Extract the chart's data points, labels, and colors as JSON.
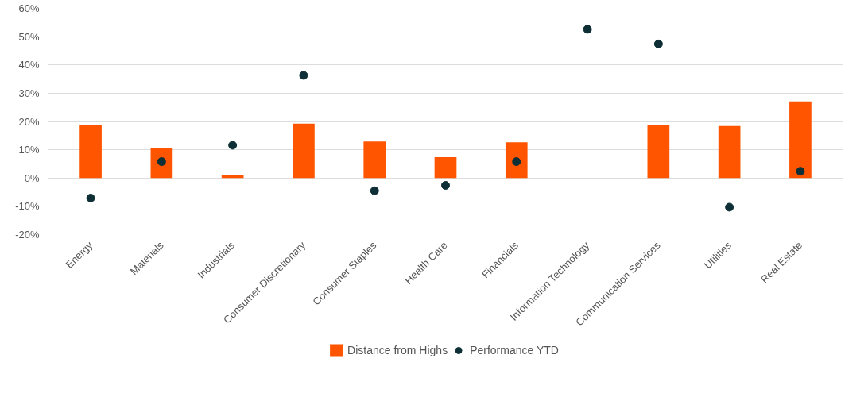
{
  "chart_data": {
    "type": "bar",
    "categories": [
      "Energy",
      "Materials",
      "Industrials",
      "Consumer Discretionary",
      "Consumer Staples",
      "Health Care",
      "Financials",
      "Information Technology",
      "Communication Services",
      "Utilities",
      "Real Estate"
    ],
    "series": [
      {
        "name": "Distance from Highs",
        "color": "#ff5500",
        "values": [
          18.7,
          10.5,
          1.0,
          19.2,
          12.9,
          7.4,
          12.6,
          null,
          18.7,
          18.4,
          27.1
        ]
      },
      {
        "name": "Performance YTD",
        "type": "scatter",
        "color": "#0d2f35",
        "marker": "circle",
        "values": [
          -7.1,
          5.8,
          11.6,
          36.3,
          -4.5,
          -2.6,
          5.8,
          52.6,
          47.4,
          -10.3,
          2.4
        ]
      }
    ],
    "ylim": [
      -20,
      60
    ],
    "yticks": [
      {
        "value": -20,
        "label": "-20%"
      },
      {
        "value": -10,
        "label": "-10%"
      },
      {
        "value": 0,
        "label": "0%"
      },
      {
        "value": 10,
        "label": "10%"
      },
      {
        "value": 20,
        "label": "20%"
      },
      {
        "value": 30,
        "label": "30%"
      },
      {
        "value": 40,
        "label": "40%"
      },
      {
        "value": 50,
        "label": "50%"
      },
      {
        "value": 60,
        "label": "60%"
      }
    ],
    "grid": "y",
    "legend": "bottom"
  }
}
